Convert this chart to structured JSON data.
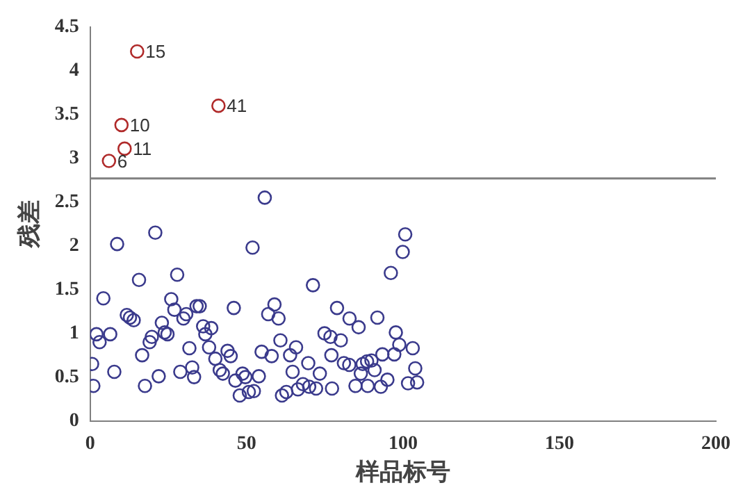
{
  "chart_data": {
    "type": "scatter",
    "xlabel": "样品标号",
    "ylabel": "残差",
    "xlim": [
      0,
      200
    ],
    "xticks": [
      0,
      50,
      100,
      150,
      200
    ],
    "ylim": [
      0,
      4.5
    ],
    "yticks": [
      0,
      0.5,
      1,
      1.5,
      2,
      2.5,
      3,
      3.5,
      4,
      4.5
    ],
    "grid": false,
    "legend": false,
    "marker": "circle",
    "series": [
      {
        "color": "#b02a2a",
        "x": [
          15,
          10,
          11,
          41,
          6
        ],
        "values": [
          4.22,
          3.38,
          3.11,
          3.6,
          2.97
        ]
      },
      {
        "color": "#3a3a8c",
        "x": [
          0.6,
          1.0,
          2.0,
          3.0,
          4.2,
          6.4,
          7.7,
          8.6,
          11.7,
          12.7,
          13.9,
          15.6,
          16.6,
          17.5,
          19.0,
          19.7,
          20.8,
          21.9,
          22.9,
          23.8,
          24.7,
          25.9,
          26.9,
          27.8,
          28.8,
          29.8,
          30.7,
          31.7,
          32.6,
          33.2,
          34.0,
          55.8,
          51.9,
          100.7,
          99.9,
          96.1,
          71.2,
          35.0,
          45.9,
          58.9,
          56.9,
          60.2,
          78.9,
          82.9,
          85.8,
          91.8,
          36.1,
          38.7,
          36.8,
          74.9,
          76.8,
          80.1,
          97.7,
          60.8,
          38.0,
          43.9,
          44.9,
          40.0,
          54.8,
          58.0,
          63.9,
          65.8,
          77.1,
          98.8,
          103.1,
          93.4,
          97.2,
          69.7,
          81.1,
          82.8,
          87.1,
          88.5,
          89.9,
          41.4,
          42.4,
          48.7,
          49.6,
          53.9,
          46.4,
          64.7,
          73.4,
          86.5,
          90.9,
          95.0,
          103.9,
          104.5,
          101.6,
          47.8,
          50.7,
          52.3,
          61.3,
          62.7,
          66.4,
          68.0,
          70.0,
          72.2,
          77.3,
          84.8,
          88.7,
          92.9
        ],
        "values": [
          0.65,
          0.4,
          0.99,
          0.9,
          1.4,
          0.99,
          0.56,
          2.02,
          1.21,
          1.18,
          1.15,
          1.61,
          0.75,
          0.4,
          0.9,
          0.96,
          2.15,
          0.51,
          1.12,
          1.01,
          0.99,
          1.39,
          1.27,
          1.67,
          0.56,
          1.17,
          1.22,
          0.83,
          0.61,
          0.5,
          1.31,
          2.55,
          1.98,
          2.13,
          1.93,
          1.69,
          1.55,
          1.31,
          1.29,
          1.33,
          1.22,
          1.17,
          1.29,
          1.17,
          1.07,
          1.18,
          1.08,
          1.06,
          0.99,
          1.0,
          0.96,
          0.92,
          1.01,
          0.92,
          0.84,
          0.8,
          0.74,
          0.71,
          0.79,
          0.74,
          0.75,
          0.84,
          0.75,
          0.87,
          0.83,
          0.76,
          0.76,
          0.66,
          0.66,
          0.64,
          0.65,
          0.68,
          0.69,
          0.58,
          0.54,
          0.54,
          0.5,
          0.51,
          0.46,
          0.56,
          0.54,
          0.54,
          0.58,
          0.47,
          0.6,
          0.44,
          0.43,
          0.29,
          0.33,
          0.34,
          0.29,
          0.33,
          0.36,
          0.42,
          0.39,
          0.37,
          0.37,
          0.4,
          0.4,
          0.39
        ]
      }
    ],
    "ref_lines": [
      {
        "axis": "y",
        "value": 2.77,
        "color": "#808080"
      }
    ],
    "annotations": [
      {
        "text": "15",
        "x": 15,
        "y": 4.22
      },
      {
        "text": "10",
        "x": 10,
        "y": 3.38
      },
      {
        "text": "11",
        "x": 11,
        "y": 3.11
      },
      {
        "text": "41",
        "x": 41,
        "y": 3.6
      },
      {
        "text": "6",
        "x": 6,
        "y": 2.97
      }
    ]
  }
}
